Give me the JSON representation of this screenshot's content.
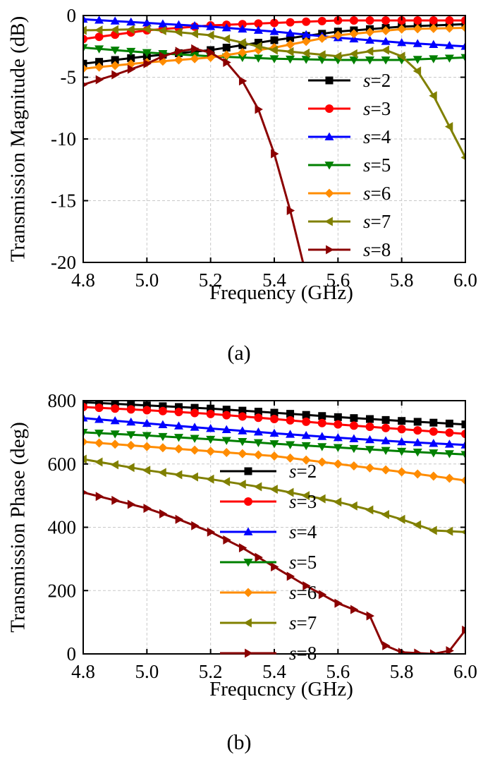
{
  "chart_data": [
    {
      "type": "line",
      "panel": "(a)",
      "xlabel": "Frequency (GHz)",
      "ylabel": "Transmission Magnitude (dB)",
      "xlim": [
        4.8,
        6.0
      ],
      "ylim": [
        -20,
        0
      ],
      "xticks": [
        "4.8",
        "5.0",
        "5.2",
        "5.4",
        "5.6",
        "5.8",
        "6.0"
      ],
      "yticks": [
        "0",
        "-5",
        "-10",
        "-15",
        "-20"
      ],
      "grid": true,
      "legend_position": "right",
      "x": [
        4.8,
        5.0,
        5.2,
        5.4,
        5.6,
        5.8,
        6.0
      ],
      "series": [
        {
          "name": "s=2",
          "label_var": "s",
          "label_val": "=2",
          "color": "#000000",
          "marker": "square",
          "points": [
            [
              4.8,
              -3.9
            ],
            [
              5.0,
              -3.3
            ],
            [
              5.2,
              -2.8
            ],
            [
              5.4,
              -2.0
            ],
            [
              5.6,
              -1.3
            ],
            [
              5.8,
              -0.9
            ],
            [
              6.0,
              -0.7
            ]
          ]
        },
        {
          "name": "s=3",
          "label_var": "s",
          "label_val": "=3",
          "color": "#ff0000",
          "marker": "circle",
          "points": [
            [
              4.8,
              -1.9
            ],
            [
              5.0,
              -1.2
            ],
            [
              5.2,
              -0.8
            ],
            [
              5.4,
              -0.6
            ],
            [
              5.6,
              -0.4
            ],
            [
              5.8,
              -0.4
            ],
            [
              6.0,
              -0.4
            ]
          ]
        },
        {
          "name": "s=4",
          "label_var": "s",
          "label_val": "=4",
          "color": "#0000ff",
          "marker": "triangle-up",
          "points": [
            [
              4.8,
              -0.3
            ],
            [
              5.0,
              -0.6
            ],
            [
              5.2,
              -0.9
            ],
            [
              5.4,
              -1.3
            ],
            [
              5.6,
              -1.8
            ],
            [
              5.8,
              -2.2
            ],
            [
              6.0,
              -2.5
            ]
          ]
        },
        {
          "name": "s=5",
          "label_var": "s",
          "label_val": "=5",
          "color": "#008000",
          "marker": "triangle-down",
          "points": [
            [
              4.8,
              -2.6
            ],
            [
              5.0,
              -3.0
            ],
            [
              5.2,
              -3.3
            ],
            [
              5.4,
              -3.5
            ],
            [
              5.6,
              -3.6
            ],
            [
              5.8,
              -3.6
            ],
            [
              6.0,
              -3.4
            ]
          ]
        },
        {
          "name": "s=6",
          "label_var": "s",
          "label_val": "=6",
          "color": "#ff8c00",
          "marker": "diamond",
          "points": [
            [
              4.8,
              -4.3
            ],
            [
              5.0,
              -3.8
            ],
            [
              5.2,
              -3.4
            ],
            [
              5.4,
              -2.6
            ],
            [
              5.6,
              -1.6
            ],
            [
              5.8,
              -1.1
            ],
            [
              6.0,
              -1.0
            ]
          ]
        },
        {
          "name": "s=7",
          "label_var": "s",
          "label_val": "=7",
          "color": "#808000",
          "marker": "triangle-left",
          "points": [
            [
              4.8,
              -1.2
            ],
            [
              5.0,
              -1.1
            ],
            [
              5.2,
              -1.6
            ],
            [
              5.4,
              -2.8
            ],
            [
              5.6,
              -3.3
            ],
            [
              5.7,
              -2.9
            ],
            [
              5.75,
              -2.8
            ],
            [
              5.8,
              -3.3
            ],
            [
              5.85,
              -4.5
            ],
            [
              5.9,
              -6.5
            ],
            [
              5.95,
              -9.0
            ],
            [
              6.0,
              -11.5
            ]
          ]
        },
        {
          "name": "s=8",
          "label_var": "s",
          "label_val": "=8",
          "color": "#8b0000",
          "marker": "triangle-right",
          "points": [
            [
              4.8,
              -5.6
            ],
            [
              4.9,
              -4.8
            ],
            [
              5.0,
              -3.9
            ],
            [
              5.05,
              -3.3
            ],
            [
              5.1,
              -2.9
            ],
            [
              5.15,
              -2.7
            ],
            [
              5.2,
              -3.0
            ],
            [
              5.25,
              -3.8
            ],
            [
              5.3,
              -5.3
            ],
            [
              5.35,
              -7.6
            ],
            [
              5.4,
              -11.2
            ],
            [
              5.45,
              -15.8
            ],
            [
              5.49,
              -20.0
            ]
          ]
        }
      ],
      "caption": "(a)"
    },
    {
      "type": "line",
      "panel": "(b)",
      "xlabel": "Frequcncy (GHz)",
      "ylabel": "Transmission Phase (deg)",
      "xlim": [
        4.8,
        6.0
      ],
      "ylim": [
        0,
        800
      ],
      "xticks": [
        "4.8",
        "5.0",
        "5.2",
        "5.4",
        "5.6",
        "5.8",
        "6.0"
      ],
      "yticks": [
        "800",
        "600",
        "400",
        "200",
        "0"
      ],
      "grid": true,
      "legend_position": "center-left",
      "series": [
        {
          "name": "s=2",
          "label_var": "s",
          "label_val": "=2",
          "color": "#000000",
          "marker": "square",
          "points": [
            [
              4.8,
              795
            ],
            [
              5.0,
              785
            ],
            [
              5.2,
              775
            ],
            [
              5.4,
              762
            ],
            [
              5.6,
              748
            ],
            [
              5.8,
              736
            ],
            [
              6.0,
              725
            ]
          ]
        },
        {
          "name": "s=3",
          "label_var": "s",
          "label_val": "=3",
          "color": "#ff0000",
          "marker": "circle",
          "points": [
            [
              4.8,
              780
            ],
            [
              5.0,
              770
            ],
            [
              5.2,
              758
            ],
            [
              5.4,
              742
            ],
            [
              5.6,
              725
            ],
            [
              5.8,
              710
            ],
            [
              6.0,
              695
            ]
          ]
        },
        {
          "name": "s=4",
          "label_var": "s",
          "label_val": "=4",
          "color": "#0000ff",
          "marker": "triangle-up",
          "points": [
            [
              4.8,
              745
            ],
            [
              5.0,
              728
            ],
            [
              5.2,
              712
            ],
            [
              5.4,
              697
            ],
            [
              5.6,
              683
            ],
            [
              5.8,
              670
            ],
            [
              6.0,
              660
            ]
          ]
        },
        {
          "name": "s=5",
          "label_var": "s",
          "label_val": "=5",
          "color": "#008000",
          "marker": "triangle-down",
          "points": [
            [
              4.8,
              700
            ],
            [
              5.0,
              690
            ],
            [
              5.2,
              678
            ],
            [
              5.4,
              664
            ],
            [
              5.6,
              652
            ],
            [
              5.8,
              640
            ],
            [
              6.0,
              630
            ]
          ]
        },
        {
          "name": "s=6",
          "label_var": "s",
          "label_val": "=6",
          "color": "#ff8c00",
          "marker": "diamond",
          "points": [
            [
              4.8,
              670
            ],
            [
              5.0,
              655
            ],
            [
              5.2,
              640
            ],
            [
              5.4,
              625
            ],
            [
              5.6,
              600
            ],
            [
              5.8,
              575
            ],
            [
              6.0,
              548
            ]
          ]
        },
        {
          "name": "s=7",
          "label_var": "s",
          "label_val": "=7",
          "color": "#808000",
          "marker": "triangle-left",
          "points": [
            [
              4.8,
              615
            ],
            [
              5.0,
              580
            ],
            [
              5.2,
              552
            ],
            [
              5.4,
              520
            ],
            [
              5.6,
              480
            ],
            [
              5.7,
              455
            ],
            [
              5.8,
              425
            ],
            [
              5.9,
              390
            ],
            [
              6.0,
              385
            ]
          ]
        },
        {
          "name": "s=8",
          "label_var": "s",
          "label_val": "=8",
          "color": "#8b0000",
          "marker": "triangle-right",
          "points": [
            [
              4.8,
              510
            ],
            [
              4.9,
              485
            ],
            [
              5.0,
              460
            ],
            [
              5.1,
              425
            ],
            [
              5.2,
              385
            ],
            [
              5.3,
              335
            ],
            [
              5.4,
              275
            ],
            [
              5.5,
              215
            ],
            [
              5.6,
              160
            ],
            [
              5.7,
              120
            ],
            [
              5.74,
              30
            ],
            [
              5.8,
              5
            ],
            [
              5.9,
              0
            ],
            [
              5.95,
              10
            ],
            [
              6.0,
              75
            ]
          ]
        }
      ],
      "caption": "(b)"
    }
  ]
}
